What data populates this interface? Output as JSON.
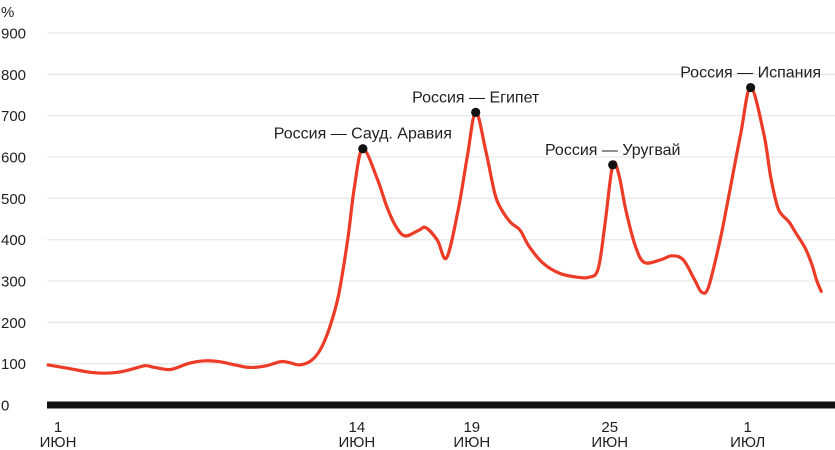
{
  "page": {
    "background": "#ffffff"
  },
  "chart_data": {
    "type": "line",
    "title": "",
    "unit_label": "%",
    "ylabel": "%",
    "xlabel": "",
    "grid": true,
    "legend_position": "none",
    "ylim": [
      0,
      900
    ],
    "y_ticks": [
      0,
      100,
      200,
      300,
      400,
      500,
      600,
      700,
      800,
      900
    ],
    "x_domain_days": [
      0.52,
      34.8
    ],
    "x_ticks": [
      {
        "day": 1,
        "top": "1",
        "bottom": "ИЮН"
      },
      {
        "day": 14,
        "top": "14",
        "bottom": "ИЮН"
      },
      {
        "day": 19,
        "top": "19",
        "bottom": "ИЮН"
      },
      {
        "day": 25,
        "top": "25",
        "bottom": "ИЮН"
      },
      {
        "day": 31,
        "top": "1",
        "bottom": "ИЮЛ"
      }
    ],
    "series": [
      {
        "color": "#ec3b26",
        "points": [
          [
            0.57,
            97
          ],
          [
            1.5,
            88
          ],
          [
            2.4,
            79
          ],
          [
            3.0,
            77
          ],
          [
            3.7,
            80
          ],
          [
            4.3,
            88
          ],
          [
            4.8,
            95
          ],
          [
            5.2,
            91
          ],
          [
            5.9,
            86
          ],
          [
            6.7,
            101
          ],
          [
            7.4,
            107
          ],
          [
            8.0,
            105
          ],
          [
            8.7,
            97
          ],
          [
            9.3,
            91
          ],
          [
            10.0,
            94
          ],
          [
            10.7,
            105
          ],
          [
            11.1,
            102
          ],
          [
            11.5,
            97
          ],
          [
            12.0,
            107
          ],
          [
            12.4,
            133
          ],
          [
            12.8,
            185
          ],
          [
            13.2,
            265
          ],
          [
            13.6,
            400
          ],
          [
            13.9,
            530
          ],
          [
            14.26,
            620
          ],
          [
            14.9,
            545
          ],
          [
            15.3,
            480
          ],
          [
            15.7,
            432
          ],
          [
            16.1,
            409
          ],
          [
            16.7,
            423
          ],
          [
            17.0,
            429
          ],
          [
            17.5,
            399
          ],
          [
            17.9,
            356
          ],
          [
            18.4,
            470
          ],
          [
            18.8,
            600
          ],
          [
            19.17,
            708
          ],
          [
            19.6,
            617
          ],
          [
            20.0,
            512
          ],
          [
            20.3,
            472
          ],
          [
            20.7,
            441
          ],
          [
            21.1,
            423
          ],
          [
            21.5,
            383
          ],
          [
            22.1,
            343
          ],
          [
            22.8,
            319
          ],
          [
            23.5,
            310
          ],
          [
            24.1,
            309
          ],
          [
            24.5,
            330
          ],
          [
            24.8,
            440
          ],
          [
            25.13,
            581
          ],
          [
            25.4,
            557
          ],
          [
            25.7,
            472
          ],
          [
            26.1,
            387
          ],
          [
            26.5,
            345
          ],
          [
            27.2,
            351
          ],
          [
            27.7,
            361
          ],
          [
            28.2,
            351
          ],
          [
            28.7,
            302
          ],
          [
            29.0,
            273
          ],
          [
            29.3,
            286
          ],
          [
            29.8,
            399
          ],
          [
            30.2,
            512
          ],
          [
            30.7,
            657
          ],
          [
            31.13,
            768
          ],
          [
            31.7,
            657
          ],
          [
            32.0,
            553
          ],
          [
            32.3,
            480
          ],
          [
            32.5,
            460
          ],
          [
            32.8,
            443
          ],
          [
            33.1,
            416
          ],
          [
            33.5,
            380
          ],
          [
            33.8,
            339
          ],
          [
            34.0,
            302
          ],
          [
            34.2,
            275
          ]
        ]
      }
    ],
    "annotations": [
      {
        "label": "Россия — Сауд. Аравия",
        "day": 14.26,
        "value": 620
      },
      {
        "label": "Россия — Египет",
        "day": 19.17,
        "value": 708
      },
      {
        "label": "Россия — Уругвай",
        "day": 25.13,
        "value": 581
      },
      {
        "label": "Россия — Испания",
        "day": 31.13,
        "value": 768
      }
    ],
    "colors": {
      "line": "#ec3b26",
      "marker": "#111111",
      "axis": "#111111",
      "grid": "#e9e9e9",
      "text": "#1f1f1f"
    }
  }
}
